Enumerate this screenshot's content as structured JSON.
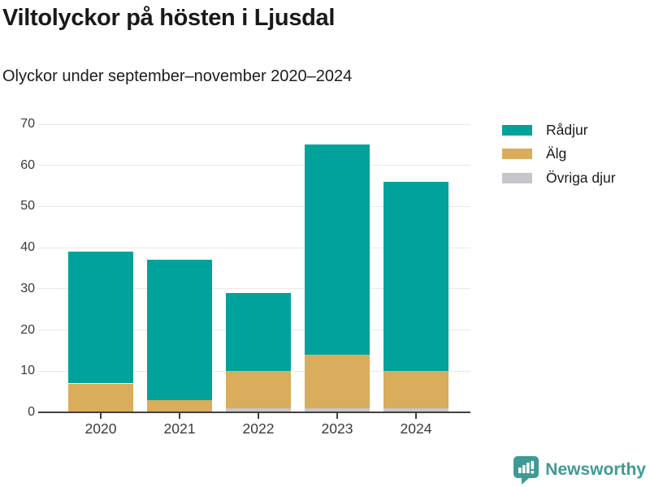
{
  "header": {
    "title": "Viltolyckor på hösten i Ljusdal",
    "subtitle": "Olyckor under september–november 2020–2024"
  },
  "chart_data": {
    "type": "bar",
    "stacked": true,
    "title": "Viltolyckor på hösten i Ljusdal",
    "subtitle": "Olyckor under september–november 2020–2024",
    "categories": [
      "2020",
      "2021",
      "2022",
      "2023",
      "2024"
    ],
    "series": [
      {
        "name": "Rådjur",
        "color": "#00a29b",
        "values": [
          32,
          34,
          19,
          51,
          46
        ]
      },
      {
        "name": "Älg",
        "color": "#d9ad5c",
        "values": [
          7,
          3,
          9,
          13,
          9
        ]
      },
      {
        "name": "Övriga djur",
        "color": "#c6c6cb",
        "values": [
          0,
          0,
          1,
          1,
          1
        ]
      }
    ],
    "stack_order_bottom_to_top": [
      "Övriga djur",
      "Älg",
      "Rådjur"
    ],
    "totals": [
      39,
      37,
      29,
      65,
      56
    ],
    "xlabel": "",
    "ylabel": "",
    "ylim": [
      0,
      70
    ],
    "yticks": [
      0,
      10,
      20,
      30,
      40,
      50,
      60,
      70
    ],
    "grid": true,
    "legend_position": "right"
  },
  "footer": {
    "brand": "Newsworthy",
    "brand_color": "#3f9a93",
    "logo_icon": "bar-chart-speech-bubble-icon"
  },
  "colors": {
    "background": "#ffffff",
    "gridline": "#e8e8e8",
    "axis": "#404040",
    "tick_text": "#3a3a3a",
    "title_text": "#191919"
  }
}
